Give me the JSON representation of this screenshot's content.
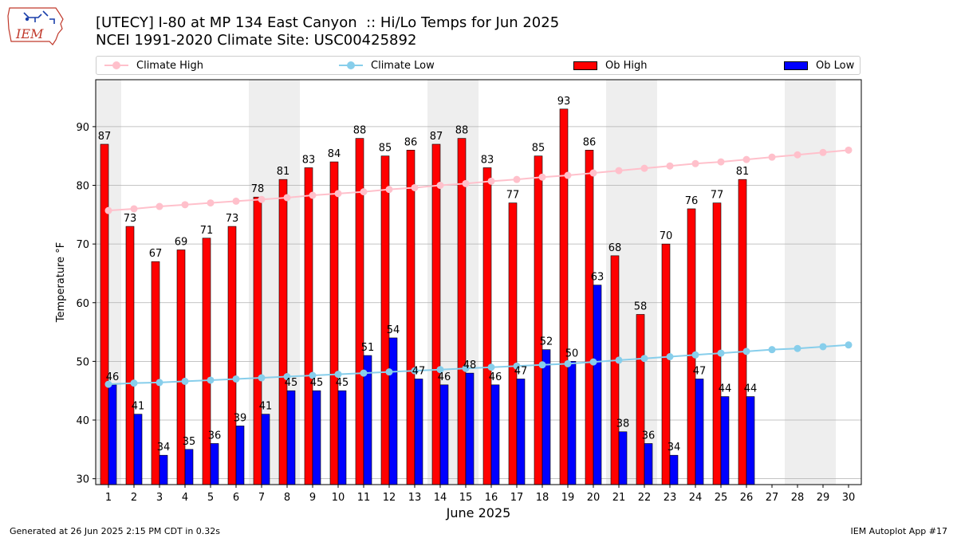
{
  "logo": {
    "text": "IEM",
    "icon": "iowa-state-outline-icon"
  },
  "header": {
    "title_line1": "[UTECY] I-80 at MP 134 East Canyon  :: Hi/Lo Temps for Jun 2025",
    "title_line2": "NCEI 1991-2020 Climate Site: USC00425892"
  },
  "legend": {
    "climate_high": "Climate High",
    "climate_low": "Climate Low",
    "ob_high": "Ob High",
    "ob_low": "Ob Low"
  },
  "colors": {
    "ob_high": "#ff0000",
    "ob_low": "#0000ff",
    "climate_high": "#ffc0cb",
    "climate_low": "#87ceeb",
    "weekend_shade": "#eeeeee",
    "grid": "#b0b0b0"
  },
  "footer": {
    "generated": "Generated at 26 Jun 2025 2:15 PM CDT in 0.32s",
    "app": "IEM Autoplot App #17"
  },
  "chart_data": {
    "type": "bar",
    "xlabel": "June 2025",
    "ylabel": "Temperature °F",
    "ylim": [
      29,
      98
    ],
    "yticks": [
      30,
      40,
      50,
      60,
      70,
      80,
      90
    ],
    "grid": "horizontal",
    "legend_position": "top",
    "categories": [
      1,
      2,
      3,
      4,
      5,
      6,
      7,
      8,
      9,
      10,
      11,
      12,
      13,
      14,
      15,
      16,
      17,
      18,
      19,
      20,
      21,
      22,
      23,
      24,
      25,
      26,
      27,
      28,
      29,
      30
    ],
    "weekend_days": [
      1,
      7,
      8,
      14,
      15,
      21,
      22,
      28,
      29
    ],
    "series": [
      {
        "name": "Ob High",
        "kind": "bar",
        "values": [
          87,
          73,
          67,
          69,
          71,
          73,
          78,
          81,
          83,
          84,
          88,
          85,
          86,
          87,
          88,
          83,
          77,
          85,
          93,
          86,
          68,
          58,
          70,
          76,
          77,
          81,
          null,
          null,
          null,
          null
        ]
      },
      {
        "name": "Ob Low",
        "kind": "bar",
        "values": [
          46,
          41,
          34,
          35,
          36,
          39,
          41,
          45,
          45,
          45,
          51,
          54,
          47,
          46,
          48,
          46,
          47,
          52,
          50,
          63,
          38,
          36,
          34,
          47,
          44,
          44,
          null,
          null,
          null,
          null
        ]
      },
      {
        "name": "Climate High",
        "kind": "line",
        "values": [
          75.7,
          76.0,
          76.4,
          76.7,
          77.0,
          77.3,
          77.6,
          77.9,
          78.3,
          78.6,
          78.9,
          79.3,
          79.6,
          80.0,
          80.3,
          80.7,
          81.0,
          81.4,
          81.7,
          82.1,
          82.5,
          82.9,
          83.3,
          83.7,
          84.0,
          84.4,
          84.8,
          85.2,
          85.6,
          86.0
        ]
      },
      {
        "name": "Climate Low",
        "kind": "line",
        "values": [
          46.1,
          46.3,
          46.4,
          46.6,
          46.8,
          47.0,
          47.2,
          47.4,
          47.6,
          47.8,
          48.0,
          48.2,
          48.4,
          48.6,
          48.8,
          49.0,
          49.2,
          49.4,
          49.6,
          49.9,
          50.2,
          50.5,
          50.8,
          51.1,
          51.4,
          51.7,
          52.0,
          52.2,
          52.5,
          52.8
        ]
      }
    ]
  }
}
